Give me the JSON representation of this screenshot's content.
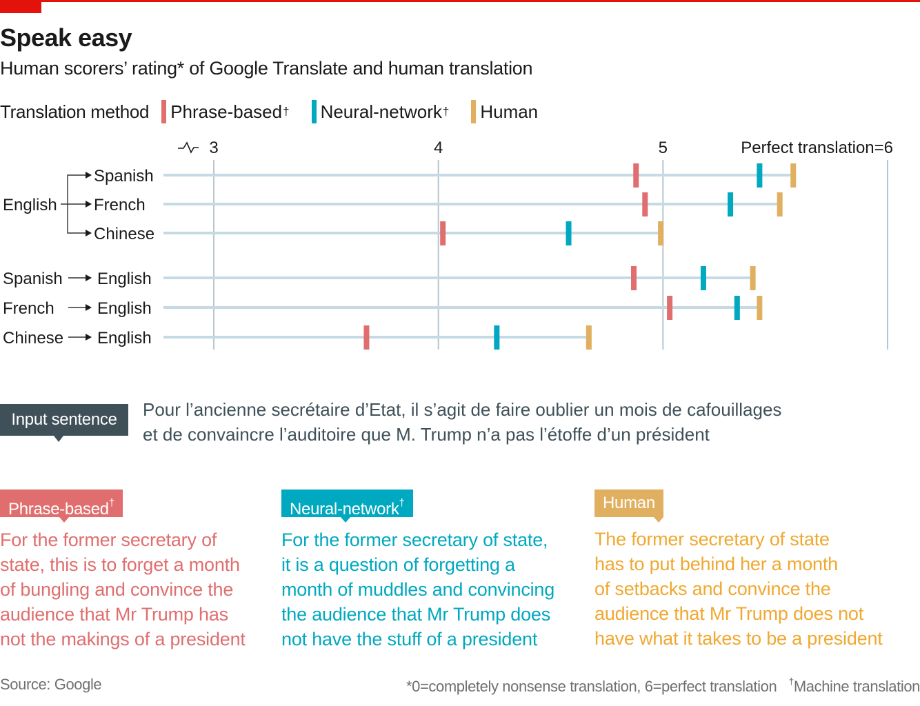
{
  "header": {
    "title": "Speak easy",
    "subtitle": "Human scorers’ rating* of Google Translate and human translation"
  },
  "legend": {
    "label": "Translation method",
    "items": [
      {
        "name": "Phrase-based",
        "mark": "†",
        "color": "#e06e6e"
      },
      {
        "name": "Neural-network",
        "mark": "†",
        "color": "#00a8c0"
      },
      {
        "name": "Human",
        "mark": "",
        "color": "#e0b060"
      }
    ]
  },
  "chart_data": {
    "type": "dot-range",
    "title": "Speak easy",
    "subtitle": "Human scorers’ rating* of Google Translate and human translation",
    "xlabel": "",
    "ylabel": "",
    "xlim": [
      3,
      6
    ],
    "axis_break": true,
    "x_ticks": [
      {
        "value": 3,
        "label": "3"
      },
      {
        "value": 4,
        "label": "4"
      },
      {
        "value": 5,
        "label": "5"
      },
      {
        "value": 6,
        "label": "Perfect translation=6"
      }
    ],
    "grid": true,
    "legend_position": "top-left",
    "series": [
      {
        "name": "Phrase-based",
        "color": "#e06e6e"
      },
      {
        "name": "Neural-network",
        "color": "#00a8c0"
      },
      {
        "name": "Human",
        "color": "#e0b060"
      }
    ],
    "groups": [
      {
        "source": "English",
        "rows": [
          {
            "label": "Spanish",
            "values": {
              "Phrase-based": 4.88,
              "Neural-network": 5.43,
              "Human": 5.58
            }
          },
          {
            "label": "French",
            "values": {
              "Phrase-based": 4.92,
              "Neural-network": 5.3,
              "Human": 5.52
            }
          },
          {
            "label": "Chinese",
            "values": {
              "Phrase-based": 4.02,
              "Neural-network": 4.58,
              "Human": 4.99
            }
          }
        ]
      },
      {
        "source": "",
        "rows": [
          {
            "label_from": "Spanish",
            "label": "English",
            "values": {
              "Phrase-based": 4.87,
              "Neural-network": 5.18,
              "Human": 5.4
            }
          },
          {
            "label_from": "French",
            "label": "English",
            "values": {
              "Phrase-based": 5.03,
              "Neural-network": 5.33,
              "Human": 5.43
            }
          },
          {
            "label_from": "Chinese",
            "label": "English",
            "values": {
              "Phrase-based": 3.68,
              "Neural-network": 4.26,
              "Human": 4.67
            }
          }
        ]
      }
    ]
  },
  "input": {
    "badge": "Input sentence",
    "lines": [
      "Pour l’ancienne secrétaire d’Etat, il s’agit de faire oublier un mois de cafouillages",
      "et de convaincre l’auditoire que M. Trump n’a pas l’étoffe d’un président"
    ]
  },
  "translations": {
    "phrase": {
      "badge": "Phrase-based",
      "mark": "†",
      "color": "#e06e6e",
      "lines": [
        "For the former secretary of",
        "state, this is to forget a month",
        "of bungling and convince the",
        "audience that Mr Trump has",
        "not the makings of a president"
      ]
    },
    "neural": {
      "badge": "Neural-network",
      "mark": "†",
      "color": "#00a8c0",
      "lines": [
        "For the former secretary of state,",
        "it is a question of forgetting a",
        "month of muddles and convincing",
        "the audience that Mr Trump does",
        "not have the stuff of a president"
      ]
    },
    "human": {
      "badge": "Human",
      "mark": "",
      "badge_color": "#e0b060",
      "color": "#f0a830",
      "lines": [
        "The former secretary of state",
        "has to put behind her a month",
        "of setbacks and convince the",
        "audience that Mr Trump does not",
        "have what it takes to be a president"
      ]
    }
  },
  "footer": {
    "source": "Source: Google",
    "note": "*0=completely nonsense translation, 6=perfect translation",
    "dagger": "†",
    "dagger_note": "Machine translation"
  }
}
